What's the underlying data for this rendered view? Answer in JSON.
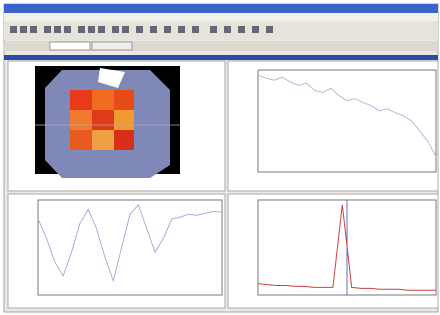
{
  "plots": [
    {
      "type": "line",
      "ylim": [
        0,
        100
      ],
      "series": [
        {
          "color": "#b8b8d8",
          "values": [
            95,
            92,
            90,
            93,
            88,
            85,
            87,
            80,
            78,
            82,
            75,
            70,
            72,
            68,
            65,
            60,
            62,
            58,
            55,
            50,
            40,
            30,
            15
          ]
        }
      ]
    },
    {
      "type": "line",
      "ylim": [
        0,
        100
      ],
      "series": [
        {
          "color": "#a8b0d8",
          "values": [
            80,
            60,
            35,
            20,
            45,
            75,
            90,
            70,
            40,
            15,
            50,
            85,
            95,
            70,
            45,
            60,
            80,
            82,
            85,
            84,
            86,
            88,
            87
          ]
        }
      ]
    },
    {
      "type": "line",
      "ylim": [
        0,
        100
      ],
      "series": [
        {
          "color": "#d04040",
          "values": [
            12,
            11,
            10,
            10,
            9,
            9,
            8,
            8,
            8,
            95,
            8,
            7,
            7,
            6,
            6,
            6,
            5,
            5,
            5,
            5
          ]
        }
      ]
    }
  ]
}
